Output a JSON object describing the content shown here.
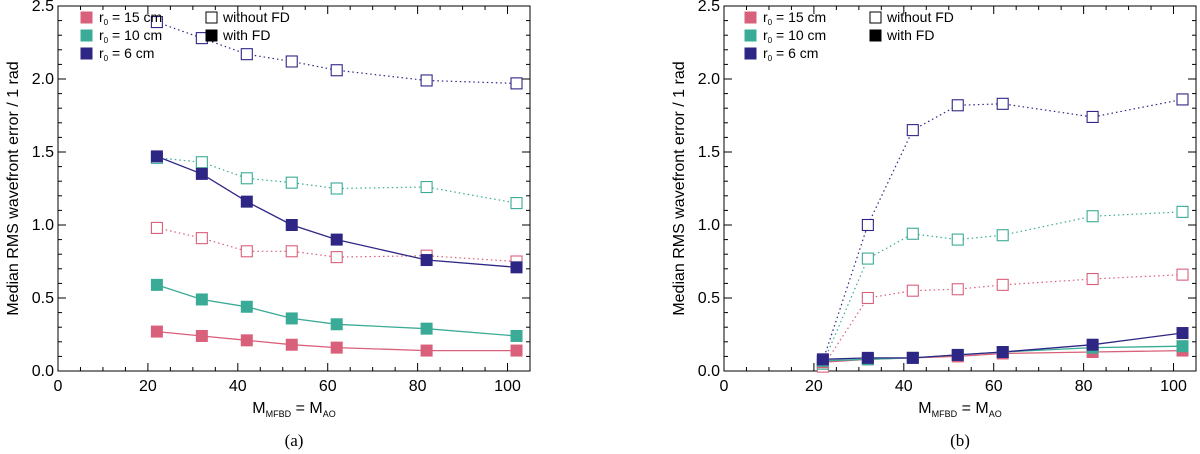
{
  "chart_data": [
    {
      "type": "line",
      "caption": "(a)",
      "ylabel": "Median RMS wavefront error / 1 rad",
      "xlabel": {
        "main": "M",
        "sub1": "MFBD",
        "eq": " = M",
        "sub2": "AO"
      },
      "xlim": [
        0,
        105
      ],
      "ylim": [
        0,
        2.5
      ],
      "xticks": [
        0,
        20,
        40,
        60,
        80,
        100
      ],
      "yticks": [
        0.0,
        0.5,
        1.0,
        1.5,
        2.0,
        2.5
      ],
      "xtick_labels": [
        "0",
        "20",
        "40",
        "60",
        "80",
        "100"
      ],
      "ytick_labels": [
        "0.0",
        "0.5",
        "1.0",
        "1.5",
        "2.0",
        "2.5"
      ],
      "legend": {
        "r0_prefix": "r",
        "r0_sub": "0",
        "items": [
          {
            "label": " = 15 cm",
            "color": "#d9607a"
          },
          {
            "label": " = 10 cm",
            "color": "#3aab96"
          },
          {
            "label": " = 6 cm",
            "color": "#2e2685"
          }
        ],
        "style_items": [
          {
            "label": "without FD",
            "filled": false
          },
          {
            "label": "with FD",
            "filled": true
          }
        ]
      },
      "x": [
        22,
        32,
        42,
        52,
        62,
        82,
        102
      ],
      "series": [
        {
          "name": "r0 = 15 cm without FD",
          "color": "#d9607a",
          "filled": false,
          "values": [
            0.98,
            0.91,
            0.82,
            0.82,
            0.78,
            0.79,
            0.75
          ]
        },
        {
          "name": "r0 = 10 cm without FD",
          "color": "#3aab96",
          "filled": false,
          "values": [
            1.46,
            1.43,
            1.32,
            1.29,
            1.25,
            1.26,
            1.15
          ]
        },
        {
          "name": "r0 = 6 cm without FD",
          "color": "#2e2685",
          "filled": false,
          "values": [
            2.39,
            2.28,
            2.17,
            2.12,
            2.06,
            1.99,
            1.97
          ]
        },
        {
          "name": "r0 = 15 cm with FD",
          "color": "#d9607a",
          "filled": true,
          "values": [
            0.27,
            0.24,
            0.21,
            0.18,
            0.16,
            0.14,
            0.14
          ]
        },
        {
          "name": "r0 = 10 cm with FD",
          "color": "#3aab96",
          "filled": true,
          "values": [
            0.59,
            0.49,
            0.44,
            0.36,
            0.32,
            0.29,
            0.24
          ]
        },
        {
          "name": "r0 = 6 cm with FD",
          "color": "#2e2685",
          "filled": true,
          "values": [
            1.47,
            1.35,
            1.16,
            1.0,
            0.9,
            0.76,
            0.71
          ]
        }
      ]
    },
    {
      "type": "line",
      "caption": "(b)",
      "ylabel": "Median RMS wavefront error / 1 rad",
      "xlabel": {
        "main": "M",
        "sub1": "MFBD",
        "eq": " = M",
        "sub2": "AO"
      },
      "xlim": [
        0,
        105
      ],
      "ylim": [
        0,
        2.5
      ],
      "xticks": [
        0,
        20,
        40,
        60,
        80,
        100
      ],
      "yticks": [
        0.0,
        0.5,
        1.0,
        1.5,
        2.0,
        2.5
      ],
      "xtick_labels": [
        "0",
        "20",
        "40",
        "60",
        "80",
        "100"
      ],
      "ytick_labels": [
        "0.0",
        "0.5",
        "1.0",
        "1.5",
        "2.0",
        "2.5"
      ],
      "legend": {
        "r0_prefix": "r",
        "r0_sub": "0",
        "items": [
          {
            "label": " = 15 cm",
            "color": "#d9607a"
          },
          {
            "label": " = 10 cm",
            "color": "#3aab96"
          },
          {
            "label": " = 6 cm",
            "color": "#2e2685"
          }
        ],
        "style_items": [
          {
            "label": "without FD",
            "filled": false
          },
          {
            "label": "with FD",
            "filled": true
          }
        ]
      },
      "x": [
        22,
        32,
        42,
        52,
        62,
        82,
        102
      ],
      "series": [
        {
          "name": "r0 = 15 cm without FD",
          "color": "#d9607a",
          "filled": false,
          "values": [
            0.03,
            0.5,
            0.55,
            0.56,
            0.59,
            0.63,
            0.66
          ]
        },
        {
          "name": "r0 = 10 cm without FD",
          "color": "#3aab96",
          "filled": false,
          "values": [
            0.05,
            0.77,
            0.94,
            0.9,
            0.93,
            1.06,
            1.09
          ]
        },
        {
          "name": "r0 = 6 cm without FD",
          "color": "#2e2685",
          "filled": false,
          "values": [
            0.07,
            1.0,
            1.65,
            1.82,
            1.83,
            1.74,
            1.86
          ]
        },
        {
          "name": "r0 = 15 cm with FD",
          "color": "#d9607a",
          "filled": true,
          "values": [
            0.06,
            0.08,
            0.09,
            0.1,
            0.12,
            0.13,
            0.14
          ]
        },
        {
          "name": "r0 = 10 cm with FD",
          "color": "#3aab96",
          "filled": true,
          "values": [
            0.07,
            0.08,
            0.09,
            0.11,
            0.13,
            0.16,
            0.17
          ]
        },
        {
          "name": "r0 = 6 cm with FD",
          "color": "#2e2685",
          "filled": true,
          "values": [
            0.08,
            0.09,
            0.09,
            0.11,
            0.13,
            0.18,
            0.26
          ]
        }
      ]
    }
  ]
}
